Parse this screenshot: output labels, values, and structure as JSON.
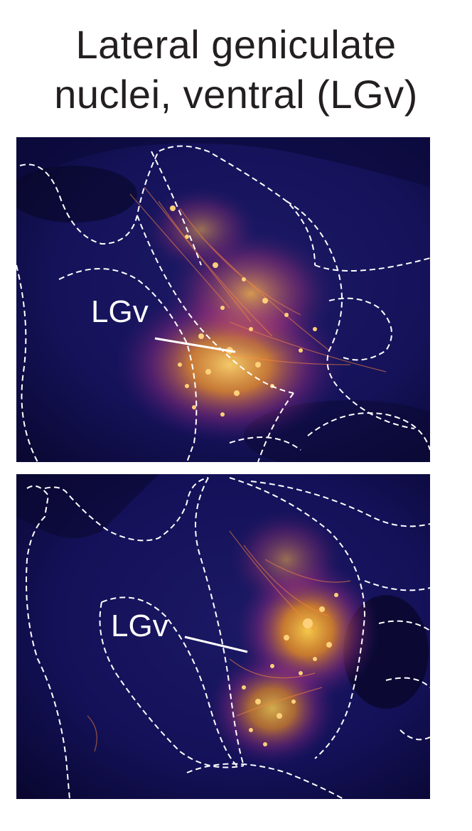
{
  "figure": {
    "title_line1": "Lateral geniculate",
    "title_line2": "nuclei, ventral (LGv)"
  },
  "panels": [
    {
      "label": "LGv",
      "colors": {
        "background": "#14124a",
        "signal": "#ffb020",
        "outline": "#ffffff"
      }
    },
    {
      "label": "LGv",
      "colors": {
        "background": "#14124a",
        "signal": "#ffb020",
        "outline": "#ffffff"
      }
    }
  ]
}
